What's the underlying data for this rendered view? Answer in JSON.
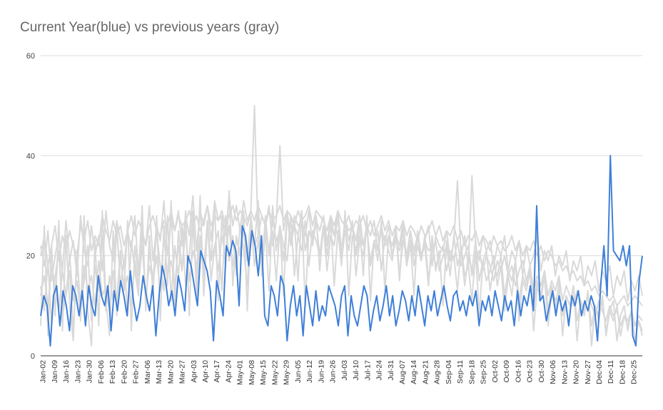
{
  "chart_data": {
    "type": "line",
    "title": "Current Year(blue) vs previous years (gray)",
    "xlabel": "",
    "ylabel": "",
    "ylim": [
      0,
      60
    ],
    "yticks": [
      "0",
      "20",
      "40",
      "60"
    ],
    "grid": true,
    "legend": "none",
    "x_tick_labels": [
      "Jan-02",
      "Jan-09",
      "Jan-16",
      "Jan-23",
      "Jan-30",
      "Feb-06",
      "Feb-13",
      "Feb-20",
      "Feb-27",
      "Mar-06",
      "Mar-13",
      "Mar-20",
      "Mar-27",
      "Apr-03",
      "Apr-10",
      "Apr-17",
      "Apr-24",
      "May-01",
      "May-08",
      "May-15",
      "May-22",
      "May-29",
      "Jun-05",
      "Jun-12",
      "Jun-19",
      "Jun-26",
      "Jul-03",
      "Jul-10",
      "Jul-17",
      "Jul-24",
      "Jul-31",
      "Aug-07",
      "Aug-14",
      "Aug-21",
      "Aug-28",
      "Sep-04",
      "Sep-11",
      "Sep-18",
      "Sep-25",
      "Oct-02",
      "Oct-09",
      "Oct-16",
      "Oct-23",
      "Oct-30",
      "Nov-06",
      "Nov-13",
      "Nov-20",
      "Nov-27",
      "Dec-04",
      "Dec-11",
      "Dec-18",
      "Dec-25"
    ],
    "series": [
      {
        "color": "#d9d9d9",
        "values": [
          20,
          24,
          18,
          22,
          26,
          19,
          24,
          21,
          25,
          22,
          20,
          26,
          23,
          27,
          21,
          24,
          22,
          28,
          25,
          23,
          27,
          24,
          26,
          22,
          25,
          28,
          24,
          27,
          25,
          22,
          26,
          28,
          25,
          24,
          27,
          26,
          29,
          25,
          28,
          26,
          27,
          29,
          26,
          28,
          25,
          27,
          30,
          26,
          28,
          27,
          29,
          26,
          28,
          30,
          27,
          29,
          28,
          26,
          29,
          27,
          30,
          28,
          26,
          29,
          27,
          28,
          30,
          27,
          29,
          28,
          26,
          29,
          27,
          28,
          30,
          26,
          29,
          28,
          27,
          25,
          28,
          26,
          29,
          27,
          26,
          28,
          25,
          27,
          26,
          28,
          25,
          27,
          24,
          26,
          28,
          25,
          27,
          24,
          26,
          25,
          27,
          24,
          26,
          25,
          23,
          26,
          24,
          25,
          27,
          24,
          26,
          23,
          25,
          24,
          26,
          23,
          25,
          22,
          24,
          23,
          25,
          22,
          24,
          23,
          21,
          24,
          22,
          23,
          21,
          22,
          24,
          21,
          23,
          20,
          22,
          21,
          23,
          20,
          22,
          19,
          21,
          20,
          18,
          19,
          17,
          18,
          16,
          17,
          15,
          16,
          14,
          15,
          13,
          14,
          12,
          13,
          12,
          11,
          12,
          10,
          11,
          12,
          10,
          11,
          12,
          11,
          10
        ]
      },
      {
        "color": "#d9d9d9",
        "values": [
          12,
          16,
          10,
          18,
          14,
          9,
          17,
          12,
          20,
          11,
          15,
          8,
          18,
          13,
          16,
          10,
          19,
          12,
          14,
          9,
          17,
          11,
          21,
          13,
          16,
          10,
          19,
          14,
          22,
          12,
          18,
          15,
          20,
          13,
          24,
          16,
          19,
          14,
          22,
          17,
          25,
          15,
          21,
          18,
          23,
          16,
          27,
          19,
          22,
          17,
          24,
          20,
          26,
          18,
          23,
          21,
          25,
          19,
          28,
          22,
          24,
          20,
          26,
          21,
          27,
          23,
          25,
          19,
          28,
          22,
          26,
          24,
          29,
          21,
          25,
          23,
          27,
          20,
          26,
          22,
          28,
          24,
          25,
          21,
          27,
          23,
          26,
          20,
          24,
          22,
          25,
          19,
          23,
          21,
          26,
          22,
          24,
          20,
          23,
          21,
          25,
          18,
          22,
          20,
          24,
          19,
          23,
          21,
          22,
          18,
          20,
          22,
          17,
          21,
          19,
          23,
          18,
          20,
          22,
          16,
          19,
          21,
          17,
          20,
          18,
          15,
          19,
          17,
          20,
          16,
          18,
          14,
          17,
          19,
          15,
          18,
          13,
          16,
          14,
          17,
          12,
          15,
          13,
          16,
          11,
          14,
          12,
          10,
          13,
          11,
          9,
          12,
          10,
          8,
          11,
          9,
          7,
          10,
          8,
          9,
          6,
          8,
          7,
          9,
          6,
          8,
          7
        ]
      },
      {
        "color": "#d9d9d9",
        "values": [
          6,
          26,
          4,
          22,
          8,
          27,
          5,
          24,
          10,
          3,
          21,
          7,
          28,
          9,
          2,
          23,
          6,
          29,
          11,
          4,
          25,
          8,
          20,
          13,
          27,
          5,
          22,
          16,
          30,
          9,
          24,
          12,
          28,
          7,
          26,
          14,
          31,
          10,
          25,
          17,
          29,
          8,
          27,
          15,
          32,
          12,
          26,
          19,
          30,
          11,
          28,
          18,
          33,
          14,
          24,
          20,
          29,
          9,
          27,
          22,
          31,
          16,
          25,
          13,
          30,
          21,
          26,
          12,
          28,
          24,
          27,
          15,
          29,
          10,
          25,
          23,
          28,
          17,
          26,
          20,
          27,
          14,
          25,
          18,
          29,
          12,
          24,
          21,
          26,
          16,
          28,
          11,
          23,
          19,
          27,
          13,
          24,
          22,
          25,
          15,
          26,
          18,
          23,
          12,
          25,
          20,
          22,
          14,
          24,
          17,
          21,
          10,
          23,
          19,
          20,
          13,
          22,
          16,
          18,
          11,
          21,
          8,
          19,
          15,
          17,
          20,
          14,
          18,
          9,
          16,
          12,
          19,
          7,
          15,
          13,
          17,
          5,
          14,
          11,
          16,
          6,
          13,
          9,
          15,
          4,
          12,
          10,
          14,
          3,
          11,
          8,
          13,
          2,
          10,
          7,
          12,
          4,
          9,
          11,
          3,
          8,
          10,
          5,
          9,
          6,
          7,
          4
        ]
      },
      {
        "color": "#d9d9d9",
        "values": [
          14,
          9,
          19,
          6,
          16,
          21,
          8,
          12,
          17,
          5,
          20,
          10,
          15,
          22,
          7,
          18,
          13,
          24,
          9,
          16,
          11,
          26,
          14,
          19,
          8,
          23,
          17,
          12,
          27,
          10,
          21,
          15,
          25,
          18,
          13,
          28,
          11,
          22,
          16,
          26,
          14,
          20,
          29,
          12,
          24,
          17,
          27,
          15,
          22,
          25,
          13,
          28,
          19,
          24,
          16,
          26,
          21,
          14,
          27,
          18,
          23,
          17,
          28,
          20,
          25,
          15,
          26,
          22,
          19,
          28,
          16,
          24,
          21,
          27,
          18,
          25,
          23,
          20,
          26,
          17,
          24,
          22,
          28,
          19,
          25,
          21,
          27,
          16,
          23,
          20,
          26,
          18,
          22,
          25,
          17,
          24,
          21,
          19,
          26,
          16,
          23,
          20,
          25,
          18,
          22,
          19,
          24,
          15,
          21,
          23,
          17,
          20,
          22,
          16,
          24,
          18,
          21,
          14,
          20,
          17,
          23,
          15,
          19,
          21,
          13,
          18,
          16,
          20,
          12,
          17,
          15,
          19,
          11,
          16,
          14,
          18,
          10,
          15,
          12,
          17,
          9,
          14,
          11,
          13,
          8,
          12,
          10,
          14,
          7,
          11,
          9,
          12,
          6,
          10,
          8,
          11,
          5,
          9,
          7,
          10,
          4,
          8,
          6,
          9,
          3,
          7,
          5
        ]
      },
      {
        "color": "#d9d9d9",
        "values": [
          22,
          18,
          25,
          15,
          20,
          24,
          17,
          27,
          19,
          23,
          16,
          28,
          21,
          18,
          26,
          20,
          24,
          17,
          29,
          22,
          19,
          27,
          23,
          18,
          25,
          21,
          28,
          16,
          24,
          22,
          30,
          19,
          26,
          23,
          31,
          20,
          27,
          25,
          29,
          22,
          28,
          24,
          32,
          21,
          29,
          26,
          30,
          23,
          31,
          27,
          28,
          24,
          32,
          26,
          30,
          25,
          31,
          27,
          29,
          50,
          24,
          28,
          26,
          30,
          22,
          27,
          42,
          25,
          29,
          23,
          28,
          26,
          27,
          24,
          29,
          22,
          27,
          25,
          28,
          23,
          26,
          24,
          29,
          21,
          27,
          25,
          26,
          23,
          28,
          22,
          26,
          24,
          27,
          21,
          25,
          23,
          26,
          20,
          24,
          22,
          27,
          19,
          25,
          21,
          24,
          20,
          23,
          26,
          18,
          24,
          22,
          21,
          25,
          19,
          23,
          35,
          20,
          24,
          18,
          36,
          22,
          19,
          24,
          21,
          23,
          18,
          22,
          20,
          24,
          17,
          21,
          19,
          23,
          16,
          22,
          18,
          20,
          24,
          17,
          21,
          19,
          22,
          16,
          20,
          18,
          21,
          15,
          19,
          17,
          20,
          14,
          18,
          16,
          19,
          13,
          17,
          15,
          18,
          12,
          16,
          14,
          17,
          11,
          15,
          13,
          16,
          12
        ]
      },
      {
        "color": "#3f7fd8",
        "values": [
          8,
          12,
          10,
          2,
          12,
          14,
          6,
          13,
          10,
          5,
          14,
          12,
          8,
          13,
          6,
          14,
          10,
          8,
          16,
          12,
          10,
          14,
          5,
          13,
          9,
          15,
          12,
          8,
          17,
          11,
          7,
          10,
          16,
          12,
          9,
          14,
          4,
          12,
          18,
          15,
          10,
          13,
          8,
          16,
          13,
          9,
          20,
          18,
          14,
          10,
          21,
          19,
          17,
          13,
          3,
          15,
          12,
          8,
          22,
          20,
          23,
          21,
          10,
          26,
          24,
          18,
          25,
          22,
          16,
          24,
          8,
          6,
          14,
          12,
          8,
          16,
          14,
          3,
          10,
          14,
          8,
          12,
          4,
          14,
          10,
          6,
          13,
          7,
          10,
          8,
          14,
          12,
          10,
          6,
          12,
          14,
          4,
          12,
          8,
          6,
          10,
          14,
          12,
          5,
          9,
          12,
          7,
          10,
          14,
          8,
          12,
          6,
          9,
          13,
          11,
          7,
          12,
          8,
          14,
          10,
          6,
          12,
          9,
          13,
          8,
          11,
          14,
          10,
          7,
          12,
          13,
          9,
          11,
          8,
          12,
          10,
          13,
          6,
          11,
          9,
          12,
          8,
          13,
          10,
          7,
          12,
          9,
          11,
          6,
          13,
          8,
          12,
          10,
          14,
          9,
          30,
          11,
          12,
          7,
          10,
          13,
          8,
          12,
          9,
          11,
          6,
          12,
          10,
          13,
          8,
          11,
          9,
          12,
          10,
          3,
          14,
          22,
          12,
          40,
          21,
          20,
          19,
          22,
          18,
          22,
          4,
          2,
          15,
          20
        ]
      }
    ]
  }
}
